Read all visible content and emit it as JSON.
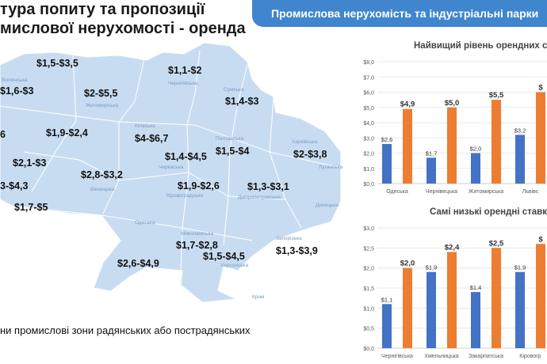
{
  "header": {
    "title_line1": "тура попиту та пропозиції",
    "title_line2": "мислової нерухомості - оренда",
    "banner": "Промислова нерухомість та індустріальні парки"
  },
  "map": {
    "prices": [
      {
        "id": "volyn",
        "value": "$1,5-$3,5"
      },
      {
        "id": "rivne",
        "value": "$1,6-$3"
      },
      {
        "id": "chernihiv",
        "value": "$1,1-$2"
      },
      {
        "id": "zhytomyr",
        "value": "$2-$5,5"
      },
      {
        "id": "sumy",
        "value": "$1,4-$3"
      },
      {
        "id": "ternopil",
        "value": "6"
      },
      {
        "id": "khmelnytskyi",
        "value": "$1,9-$2,4"
      },
      {
        "id": "kyiv",
        "value": "$4-$6,7"
      },
      {
        "id": "poltava",
        "value": "$1,5-$4"
      },
      {
        "id": "kharkiv",
        "value": "$2-$3,8"
      },
      {
        "id": "cherkasy",
        "value": "$1,4-$4,5"
      },
      {
        "id": "chernivtsi",
        "value": "$2,1-$3"
      },
      {
        "id": "vinnytsia",
        "value": "$2,8-$3,2"
      },
      {
        "id": "zakarpattia",
        "value": "3-$4,3"
      },
      {
        "id": "kirovohrad",
        "value": "$1,9-$2,6"
      },
      {
        "id": "dnipro",
        "value": "$1,3-$3,1"
      },
      {
        "id": "ivano",
        "value": "$1,7-$5"
      },
      {
        "id": "mykolaiv",
        "value": "$1,7-$2,8"
      },
      {
        "id": "odesa",
        "value": "$2,6-$4,9"
      },
      {
        "id": "zaporizhzhia",
        "value": "$1,3-$3,9"
      },
      {
        "id": "kherson",
        "value": "$1,5-$4,5"
      }
    ],
    "regions": [
      {
        "id": "r-volyn",
        "label": "Волинська"
      },
      {
        "id": "r-chernihiv",
        "label": "Чернігівська"
      },
      {
        "id": "r-sumy",
        "label": "Сумська"
      },
      {
        "id": "r-zhytomyr",
        "label": "Житомирська"
      },
      {
        "id": "r-kyiv",
        "label": "Київська"
      },
      {
        "id": "r-poltava",
        "label": "Полтавська"
      },
      {
        "id": "r-kharkiv",
        "label": "Харківська"
      },
      {
        "id": "r-cherkasy",
        "label": "Черкаська"
      },
      {
        "id": "r-vinnytsia",
        "label": "Вінницька"
      },
      {
        "id": "r-kirovohrad",
        "label": "Кіровоградська"
      },
      {
        "id": "r-dnipro",
        "label": "Дніпропетровська"
      },
      {
        "id": "r-donetsk",
        "label": "Донецька"
      },
      {
        "id": "r-luhansk",
        "label": "Луганська"
      },
      {
        "id": "r-odesa",
        "label": "Одеська"
      },
      {
        "id": "r-mykolaiv",
        "label": "Миколаївська"
      },
      {
        "id": "r-zaporizhzhia",
        "label": "Запорізька"
      },
      {
        "id": "r-kherson",
        "label": "Херсонська"
      },
      {
        "id": "r-krym",
        "label": "Крим"
      }
    ],
    "bottom_note": "ни промислові зони радянських або пострадянських"
  },
  "chart_data": [
    {
      "type": "bar",
      "title": "Найвищий рівень орендних ст",
      "categories": [
        "Одеська",
        "Чернівецька",
        "Житомирська",
        "Львівс"
      ],
      "series": [
        {
          "values": [
            2.6,
            1.7,
            2.0,
            3.2
          ],
          "labels": [
            "$2,6",
            "$1,7",
            "$2,0",
            "$3,2"
          ],
          "color": "#4472c4"
        },
        {
          "values": [
            4.9,
            5.0,
            5.5,
            6.0
          ],
          "labels": [
            "$4,9",
            "$5,0",
            "$5,5",
            "$"
          ],
          "color": "#ed7d31"
        }
      ],
      "ylim": [
        0,
        8
      ],
      "yticks": [
        "$0,0",
        "$1,0",
        "$2,0",
        "$3,0",
        "$4,0",
        "$5,0",
        "$6,0",
        "$7,0",
        "$8,0"
      ],
      "grid": true
    },
    {
      "type": "bar",
      "title": "Самі низькі орендні ставки",
      "categories": [
        "Чернігівська",
        "Хмельницька",
        "Закарпатська",
        "Кіровогр"
      ],
      "series": [
        {
          "values": [
            1.1,
            1.9,
            1.4,
            1.9
          ],
          "labels": [
            "$1,1",
            "$1,9",
            "$1,4",
            "$1,9"
          ],
          "color": "#4472c4"
        },
        {
          "values": [
            2.0,
            2.4,
            2.5,
            2.6
          ],
          "labels": [
            "$2,0",
            "$2,4",
            "$2,5",
            "$"
          ],
          "color": "#ed7d31"
        }
      ],
      "ylim": [
        0,
        3
      ],
      "yticks": [
        "$0,0",
        "$0,5",
        "$1,0",
        "$1,5",
        "$2,0",
        "$2,5",
        "$3,0"
      ],
      "grid": true
    }
  ]
}
